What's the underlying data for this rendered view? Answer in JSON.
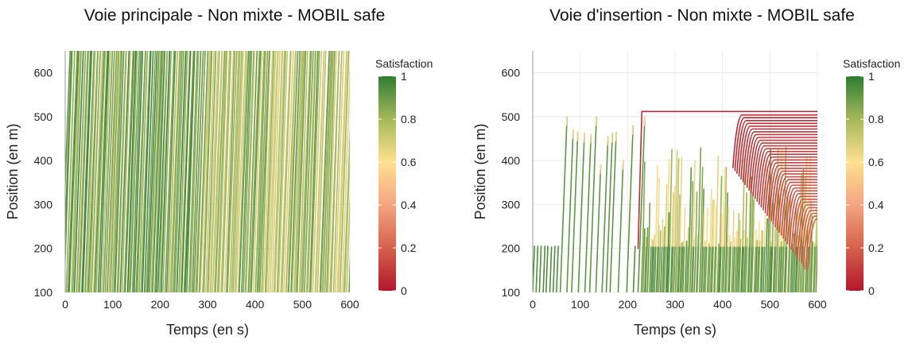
{
  "chart_data": [
    {
      "type": "line",
      "title": "Voie principale - Non mixte - MOBIL safe",
      "xlabel": "Temps (en s)",
      "ylabel": "Position (en m)",
      "xlim": [
        0,
        600
      ],
      "ylim": [
        100,
        650
      ],
      "x_ticks": [
        "0",
        "100",
        "200",
        "300",
        "400",
        "500",
        "600"
      ],
      "y_ticks": [
        "100",
        "200",
        "300",
        "400",
        "500",
        "600"
      ],
      "grid": true,
      "legend": {
        "title": "Satisfaction",
        "placement": "right",
        "ticks": [
          "0",
          "0.2",
          "0.4",
          "0.6",
          "0.8",
          "1"
        ],
        "colors": [
          "#b2182b",
          "#d6604d",
          "#f4a582",
          "#fee090",
          "#a6b85a",
          "#2e7d32"
        ]
      },
      "description_of_series": "dense family of vehicle trajectories rising from 100 m to above 650 m",
      "trajectories": {
        "count": 170,
        "start_time_range": [
          -10,
          600
        ],
        "speed_m_per_s": [
          27,
          33
        ],
        "satisfaction_range": [
          0.75,
          1.0
        ]
      }
    },
    {
      "type": "line",
      "title": "Voie d'insertion - Non mixte - MOBIL safe",
      "xlabel": "Temps (en s)",
      "ylabel": "Position (en m)",
      "xlim": [
        0,
        600
      ],
      "ylim": [
        100,
        650
      ],
      "x_ticks": [
        "0",
        "100",
        "200",
        "300",
        "400",
        "500",
        "600"
      ],
      "y_ticks": [
        "100",
        "200",
        "300",
        "400",
        "500",
        "600"
      ],
      "grid": true,
      "legend": {
        "title": "Satisfaction",
        "placement": "right",
        "ticks": [
          "0",
          "0.2",
          "0.4",
          "0.6",
          "0.8",
          "1"
        ],
        "colors": [
          "#b2182b",
          "#d6604d",
          "#f4a582",
          "#fee090",
          "#a6b85a",
          "#2e7d32"
        ]
      },
      "early_merges": [
        {
          "t": 0,
          "top": 205
        },
        {
          "t": 7,
          "top": 205
        },
        {
          "t": 14,
          "top": 205
        },
        {
          "t": 22,
          "top": 205
        },
        {
          "t": 28,
          "top": 205
        },
        {
          "t": 36,
          "top": 203
        },
        {
          "t": 43,
          "top": 205
        },
        {
          "t": 50,
          "top": 205
        },
        {
          "t": 58,
          "top": 500
        },
        {
          "t": 72,
          "top": 470
        },
        {
          "t": 82,
          "top": 465
        },
        {
          "t": 96,
          "top": 462
        },
        {
          "t": 110,
          "top": 460
        },
        {
          "t": 120,
          "top": 500
        },
        {
          "t": 133,
          "top": 390
        },
        {
          "t": 146,
          "top": 455
        },
        {
          "t": 155,
          "top": 462
        },
        {
          "t": 163,
          "top": 465
        },
        {
          "t": 180,
          "top": 400
        },
        {
          "t": 198,
          "top": 480
        },
        {
          "t": 212,
          "top": 205
        },
        {
          "t": 222,
          "top": 500
        }
      ],
      "queue": {
        "stop_position": 512,
        "first_stop_time": 230,
        "count": 38,
        "queue_start_time": 430,
        "spacing_m": 6.4,
        "end_time": 600
      },
      "late_spikes": {
        "count": 110,
        "time_range": [
          228,
          600
        ],
        "top_range": [
          210,
          440
        ],
        "satisfaction_range": [
          0.55,
          0.95
        ]
      }
    }
  ]
}
